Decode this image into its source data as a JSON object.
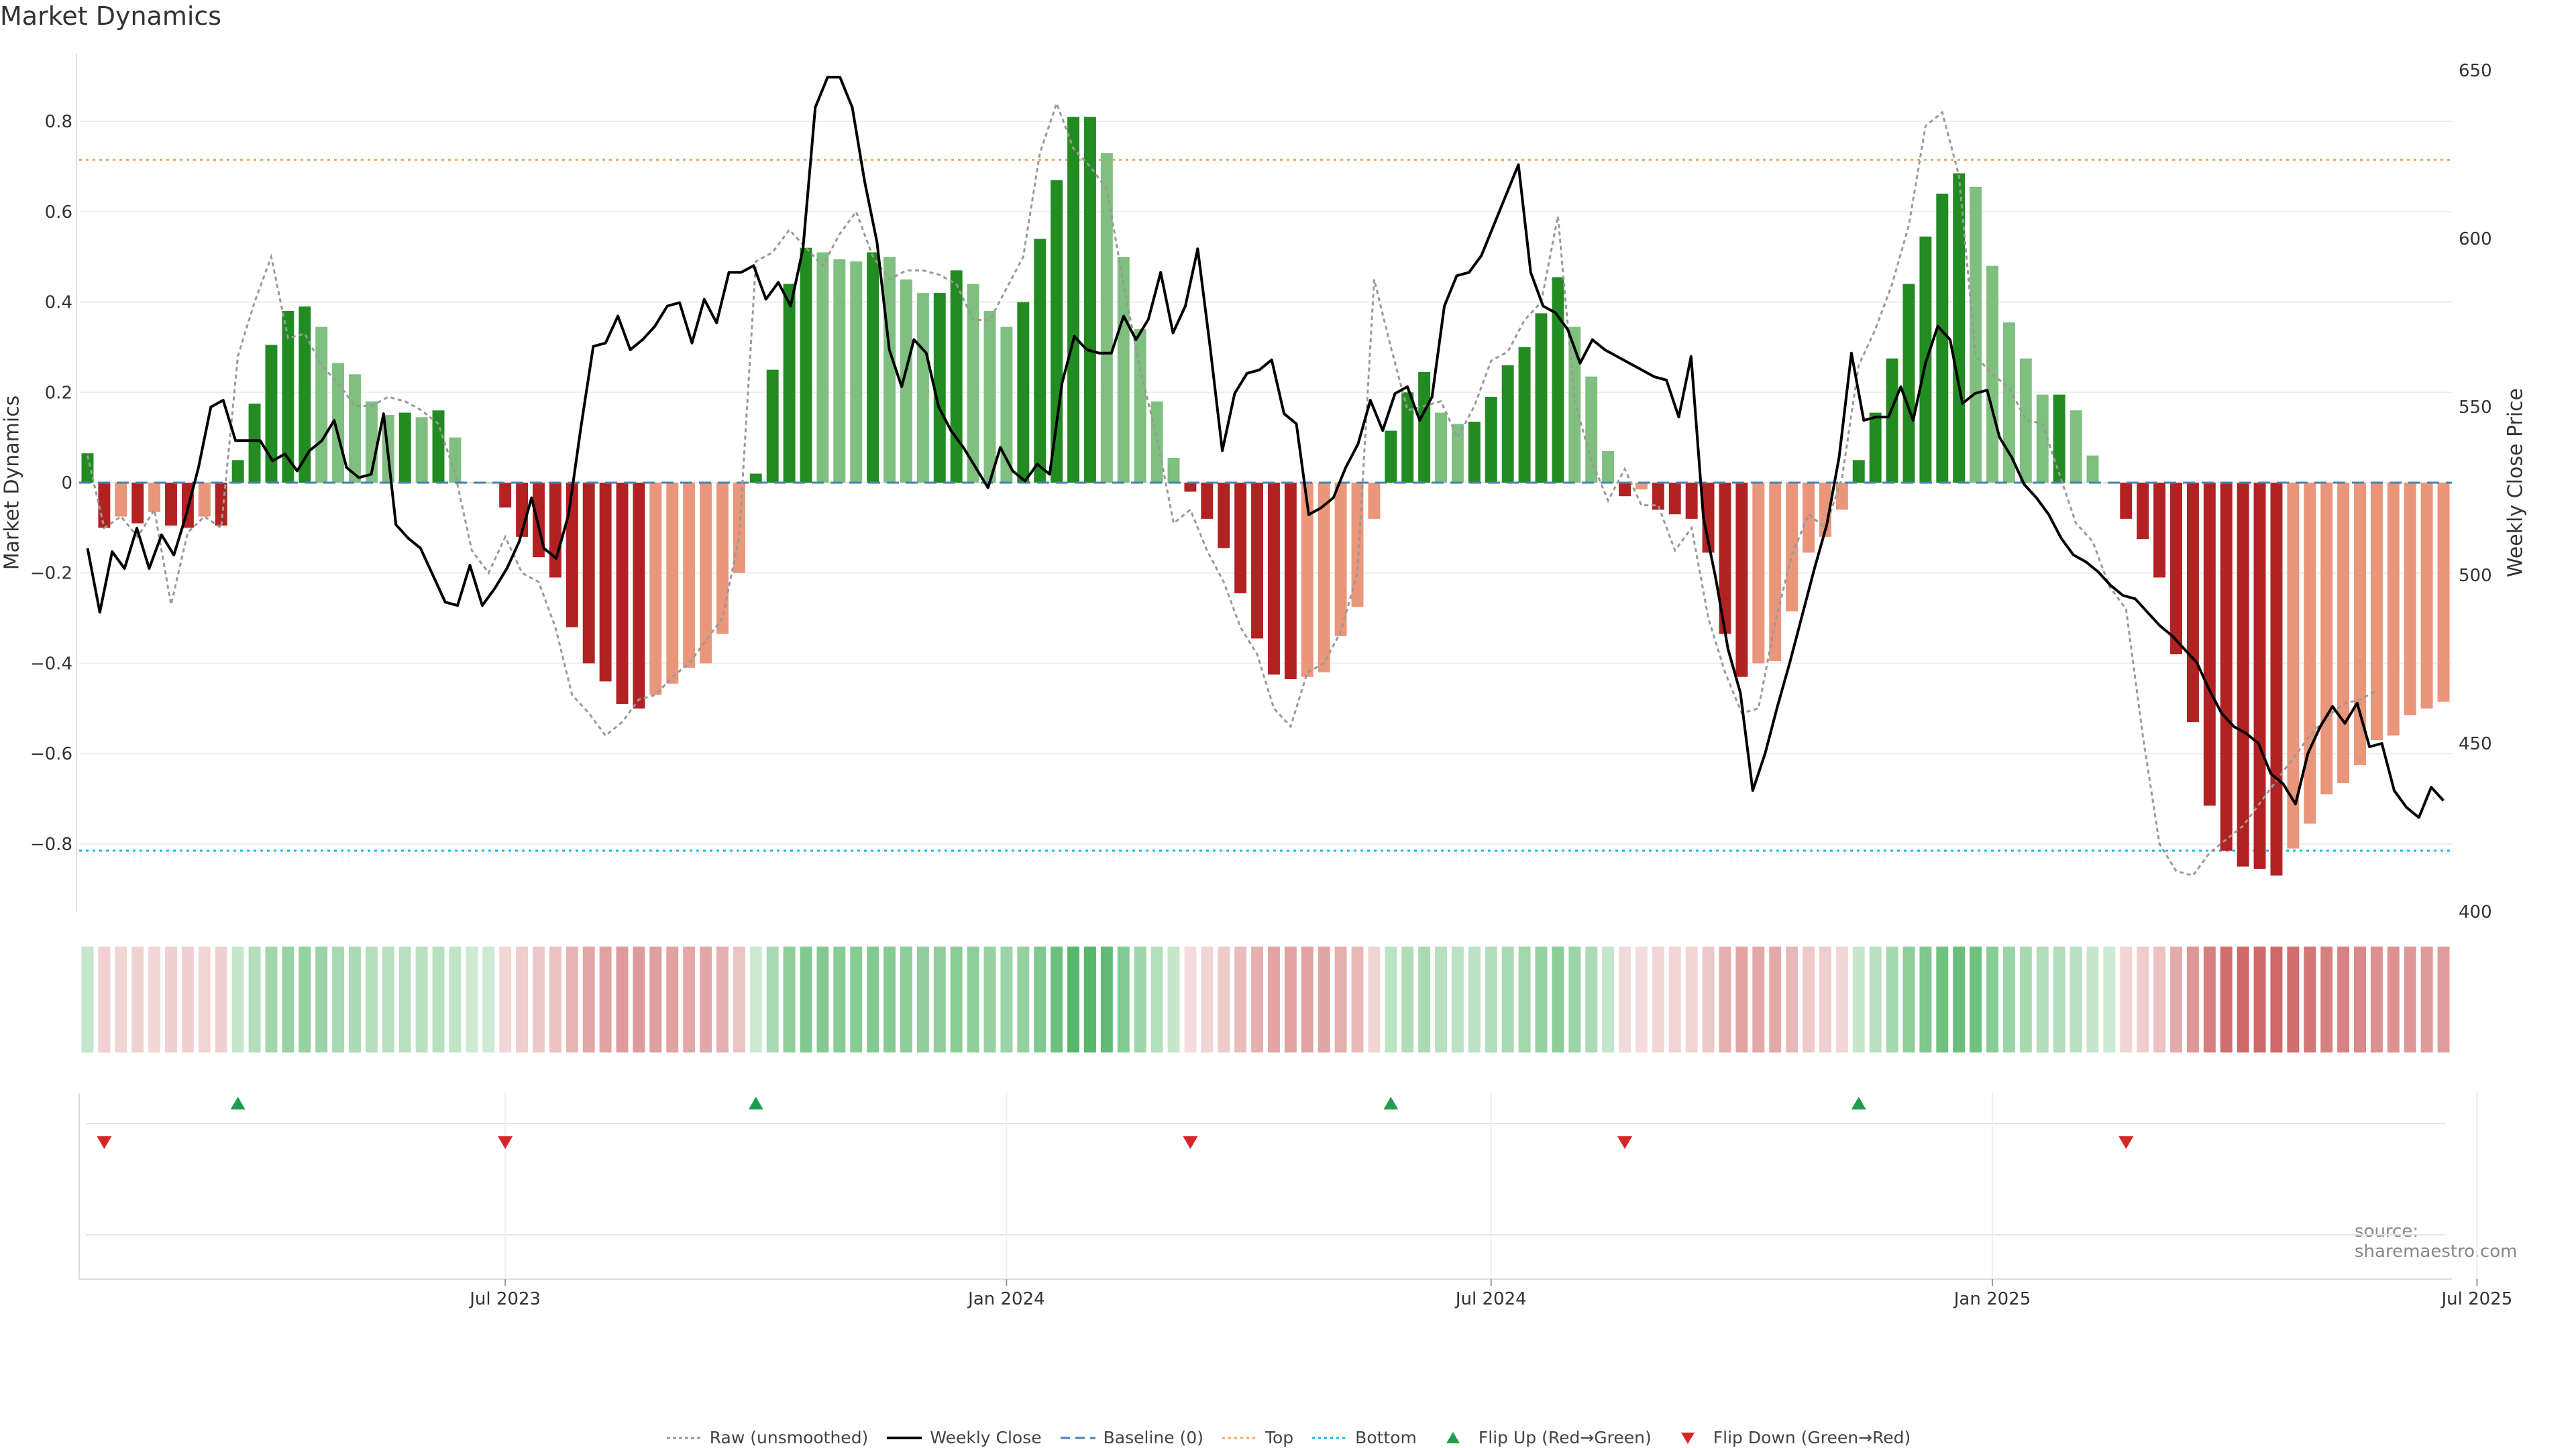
{
  "chart_title": "Market Dynamics",
  "source_note": "source: sharemaestro.com",
  "colors": {
    "strong_green": "#228B22",
    "light_green": "#7FBF7F",
    "strong_red": "#B22222",
    "light_red": "#E9967A",
    "weekly_close": "#000000",
    "raw": "#999999",
    "baseline": "#4682B4",
    "top": "#F4A460",
    "bottom": "#00BFFF",
    "flip_up": "#1E9E4A",
    "flip_down": "#D62728"
  },
  "legend": [
    {
      "key": "raw",
      "label": "Raw (unsmoothed)"
    },
    {
      "key": "close",
      "label": "Weekly Close"
    },
    {
      "key": "baseline",
      "label": "Baseline (0)"
    },
    {
      "key": "top",
      "label": "Top"
    },
    {
      "key": "bottom",
      "label": "Bottom"
    },
    {
      "key": "flip_up",
      "label": "Flip Up (Red→Green)"
    },
    {
      "key": "flip_down",
      "label": "Flip Down (Green→Red)"
    }
  ],
  "chart_data": {
    "type": "bar",
    "title": "Market Dynamics",
    "ylabel": "Market Dynamics",
    "y2label": "Weekly Close Price",
    "ylim": [
      -0.95,
      0.95
    ],
    "y2lim": [
      400,
      655
    ],
    "yticks": [
      -0.8,
      -0.6,
      -0.4,
      -0.2,
      0,
      0.2,
      0.4,
      0.6,
      0.8
    ],
    "y2ticks": [
      400,
      450,
      500,
      550,
      600,
      650
    ],
    "x_tick_labels": [
      "Jul 2023",
      "Jan 2024",
      "Jul 2024",
      "Jan 2025",
      "Jul 2025"
    ],
    "x_tick_positions": [
      25,
      55,
      84,
      114,
      143
    ],
    "baseline": 0,
    "top": 0.715,
    "bottom": -0.815,
    "grid": true,
    "legend_position": "bottom-center",
    "values": [
      0.065,
      -0.1,
      -0.075,
      -0.09,
      -0.065,
      -0.095,
      -0.1,
      -0.075,
      -0.095,
      0.05,
      0.175,
      0.305,
      0.38,
      0.39,
      0.345,
      0.265,
      0.24,
      0.18,
      0.15,
      0.155,
      0.145,
      0.16,
      0.1,
      0,
      0,
      -0.055,
      -0.12,
      -0.165,
      -0.21,
      -0.32,
      -0.4,
      -0.44,
      -0.49,
      -0.5,
      -0.47,
      -0.445,
      -0.41,
      -0.4,
      -0.335,
      -0.2,
      0.02,
      0.25,
      0.44,
      0.52,
      0.51,
      0.495,
      0.49,
      0.51,
      0.5,
      0.45,
      0.42,
      0.42,
      0.47,
      0.44,
      0.38,
      0.345,
      0.4,
      0.54,
      0.67,
      0.81,
      0.81,
      0.73,
      0.5,
      0.34,
      0.18,
      0.055,
      -0.02,
      -0.08,
      -0.145,
      -0.245,
      -0.345,
      -0.425,
      -0.435,
      -0.43,
      -0.42,
      -0.34,
      -0.275,
      -0.08,
      0.115,
      0.2,
      0.245,
      0.155,
      0.13,
      0.135,
      0.19,
      0.26,
      0.3,
      0.375,
      0.455,
      0.345,
      0.235,
      0.07,
      -0.03,
      -0.015,
      -0.06,
      -0.07,
      -0.08,
      -0.155,
      -0.335,
      -0.43,
      -0.4,
      -0.395,
      -0.285,
      -0.155,
      -0.12,
      -0.06,
      0.05,
      0.155,
      0.275,
      0.44,
      0.545,
      0.64,
      0.685,
      0.655,
      0.48,
      0.355,
      0.275,
      0.195,
      0.195,
      0.16,
      0.06,
      0,
      -0.08,
      -0.125,
      -0.21,
      -0.38,
      -0.53,
      -0.715,
      -0.815,
      -0.85,
      -0.855,
      -0.87,
      -0.81,
      -0.755,
      -0.69,
      -0.665,
      -0.625,
      -0.57,
      -0.56,
      -0.515,
      -0.5,
      -0.485
    ],
    "weekly_close": [
      508,
      489,
      507,
      502,
      514,
      502,
      512,
      506,
      518,
      532,
      550,
      552,
      540,
      540,
      540,
      534,
      536,
      531,
      537,
      540,
      546,
      532,
      529,
      530,
      548,
      515,
      511,
      508,
      500,
      492,
      491,
      503,
      491,
      496,
      502,
      510,
      523,
      508,
      505,
      518,
      544,
      568,
      569,
      577,
      567,
      570,
      574,
      580,
      581,
      569,
      582,
      575,
      590,
      590,
      592,
      582,
      587,
      580,
      597,
      639,
      648,
      648,
      639,
      617,
      599,
      567,
      556,
      570,
      566,
      550,
      543,
      538,
      532,
      526,
      538,
      531,
      528,
      533,
      530,
      557,
      571,
      567,
      566,
      566,
      577,
      570,
      576,
      590,
      572,
      580,
      597,
      568,
      537,
      554,
      560,
      561,
      564,
      548,
      545,
      518,
      520,
      523,
      532,
      539,
      552,
      543,
      554,
      556,
      546,
      553,
      580,
      589,
      590,
      595,
      604,
      613,
      622,
      590,
      580,
      578,
      573,
      563,
      570,
      567,
      565,
      563,
      561,
      559,
      558,
      547,
      565,
      517,
      499,
      478,
      465,
      436,
      447,
      461,
      474,
      488,
      502,
      515,
      535,
      566,
      546,
      547,
      547,
      556,
      546,
      563,
      574,
      570,
      551,
      554,
      555,
      541,
      535,
      527,
      523,
      518,
      511,
      506,
      504,
      501,
      497,
      494,
      493,
      489,
      485,
      482,
      478,
      474,
      466,
      459,
      455,
      453,
      450,
      441,
      438,
      432,
      447,
      455,
      461,
      456,
      462,
      449,
      450,
      436,
      431,
      428,
      437,
      433
    ],
    "weekly_close_x": [
      0,
      1,
      2,
      3,
      4,
      5,
      6,
      7,
      8,
      9,
      10,
      11,
      12,
      13,
      14,
      15,
      16,
      17,
      18,
      19,
      20,
      21,
      22,
      23,
      24,
      25,
      26,
      27,
      28,
      29,
      30,
      31,
      32,
      33,
      34,
      35,
      36,
      37,
      38,
      39,
      40,
      41,
      42,
      43,
      44,
      45,
      46,
      47,
      48,
      49,
      50,
      51,
      52,
      53,
      54,
      55,
      56,
      57,
      58,
      59,
      60,
      61,
      62,
      63,
      64,
      65,
      66,
      67,
      68,
      69,
      70,
      71,
      72,
      73,
      74,
      75,
      76,
      77,
      78,
      79,
      80,
      81,
      82,
      83,
      84,
      85,
      86,
      87,
      88,
      89,
      90,
      91,
      92,
      93,
      94,
      95,
      96,
      97,
      98,
      99,
      100,
      101,
      102,
      103,
      104,
      105,
      106,
      107,
      108,
      109,
      110,
      111,
      112,
      113,
      114,
      115,
      116,
      117,
      118,
      119,
      120,
      121,
      122,
      123,
      124,
      125,
      126,
      127,
      128,
      129,
      130,
      131,
      132,
      133,
      134,
      135,
      136,
      137,
      138,
      139,
      140,
      141,
      142,
      143,
      144,
      145,
      146,
      147,
      148,
      149,
      150,
      151,
      152,
      153,
      154,
      155,
      156,
      157,
      158,
      159,
      160,
      161,
      162,
      163,
      164,
      165,
      166,
      167,
      168,
      169,
      170,
      171,
      172,
      173,
      174,
      175,
      176,
      177,
      178,
      179,
      180,
      181,
      182,
      183,
      184,
      185,
      186,
      187,
      188,
      189,
      190,
      191
    ],
    "raw": [
      0.06,
      -0.1,
      -0.075,
      -0.12,
      -0.06,
      -0.27,
      -0.11,
      -0.075,
      -0.1,
      0.28,
      0.4,
      0.5,
      0.32,
      0.33,
      0.26,
      0.22,
      0.17,
      0.17,
      0.19,
      0.18,
      0.16,
      0.13,
      0.02,
      -0.15,
      -0.2,
      -0.12,
      -0.2,
      -0.22,
      -0.32,
      -0.47,
      -0.51,
      -0.56,
      -0.53,
      -0.48,
      -0.47,
      -0.43,
      -0.4,
      -0.35,
      -0.3,
      -0.12,
      0.49,
      0.51,
      0.56,
      0.52,
      0.48,
      0.55,
      0.6,
      0.5,
      0.45,
      0.47,
      0.47,
      0.46,
      0.44,
      0.36,
      0.36,
      0.43,
      0.5,
      0.73,
      0.84,
      0.74,
      0.7,
      0.65,
      0.44,
      0.25,
      0.1,
      -0.09,
      -0.06,
      -0.15,
      -0.22,
      -0.32,
      -0.38,
      -0.5,
      -0.54,
      -0.42,
      -0.4,
      -0.33,
      -0.2,
      0.45,
      0.3,
      0.16,
      0.17,
      0.18,
      0.1,
      0.17,
      0.27,
      0.29,
      0.36,
      0.4,
      0.59,
      0.18,
      0.05,
      -0.04,
      0.03,
      -0.05,
      -0.05,
      -0.15,
      -0.1,
      -0.3,
      -0.42,
      -0.51,
      -0.5,
      -0.31,
      -0.16,
      -0.07,
      -0.1,
      0.01,
      0.26,
      0.34,
      0.44,
      0.57,
      0.79,
      0.82,
      0.68,
      0.28,
      0.24,
      0.21,
      0.14,
      0.13,
      0.02,
      -0.09,
      -0.13,
      -0.23,
      -0.28,
      -0.56,
      -0.8,
      -0.86,
      -0.87,
      -0.82,
      -0.79,
      -0.76,
      -0.71,
      -0.66,
      -0.61,
      -0.56,
      -0.52,
      -0.49,
      -0.48,
      -0.46
    ]
  }
}
